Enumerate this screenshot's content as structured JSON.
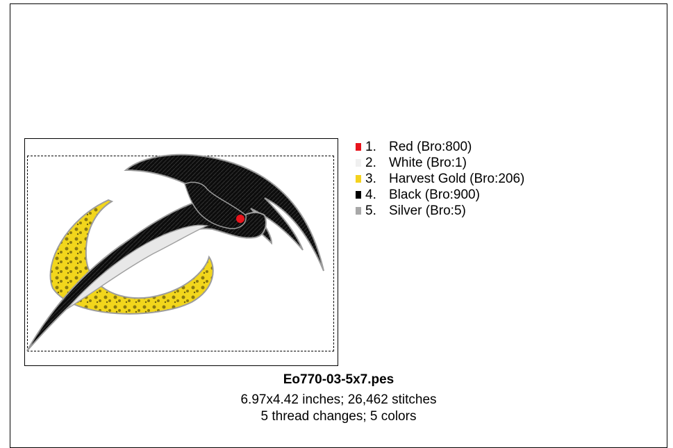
{
  "threads": [
    {
      "num": "1.",
      "name": "Red (Bro:800)",
      "color": "#e8141c"
    },
    {
      "num": "2.",
      "name": "White (Bro:1)",
      "color": "#f0f0f0"
    },
    {
      "num": "3.",
      "name": "Harvest Gold (Bro:206)",
      "color": "#f4d21e"
    },
    {
      "num": "4.",
      "name": "Black (Bro:900)",
      "color": "#000000"
    },
    {
      "num": "5.",
      "name": "Silver (Bro:5)",
      "color": "#a8a8a8"
    }
  ],
  "file": {
    "name": "Eo770-03-5x7.pes",
    "dimensions": "6.97x4.42 inches; 26,462 stitches",
    "changes": "5 thread changes; 5 colors"
  }
}
